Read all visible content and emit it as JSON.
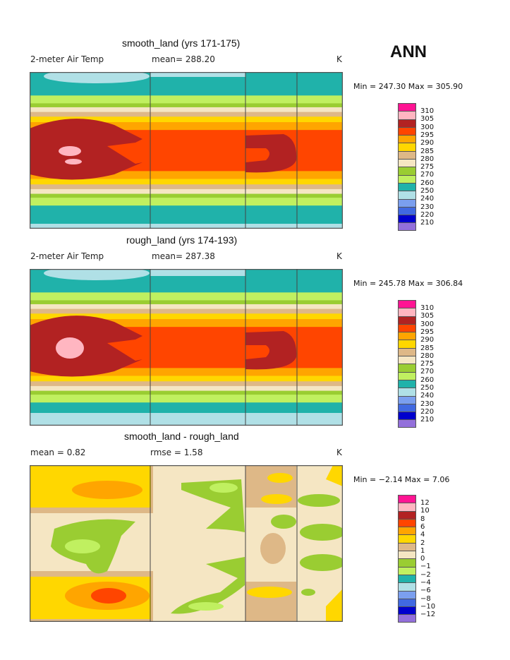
{
  "season": "ANN",
  "colors": [
    "#FF1493",
    "#FFB6C1",
    "#B22222",
    "#FF4500",
    "#FFA500",
    "#FFD700",
    "#DEB887",
    "#F5E6C3",
    "#9ACD32",
    "#C0F060",
    "#20B2AA",
    "#B0E0E6",
    "#7B9FEF",
    "#4169E1",
    "#0000CD",
    "#9370DB"
  ],
  "chart_data": [
    {
      "type": "heatmap",
      "title": "smooth_land (yrs 171-175)",
      "variable": "2-meter Air Temp",
      "mean_label": "mean= 288.20",
      "units": "K",
      "minmax": "Min = 247.30 Max = 305.90",
      "min": 247.3,
      "max": 305.9,
      "mean": 288.2,
      "levels": [
        "310",
        "305",
        "300",
        "295",
        "290",
        "285",
        "280",
        "275",
        "270",
        "260",
        "250",
        "240",
        "230",
        "220",
        "210"
      ]
    },
    {
      "type": "heatmap",
      "title": "rough_land (yrs 174-193)",
      "variable": "2-meter Air Temp",
      "mean_label": "mean= 287.38",
      "units": "K",
      "minmax": "Min = 245.78 Max = 306.84",
      "min": 245.78,
      "max": 306.84,
      "mean": 287.38,
      "levels": [
        "310",
        "305",
        "300",
        "295",
        "290",
        "285",
        "280",
        "275",
        "270",
        "260",
        "250",
        "240",
        "230",
        "220",
        "210"
      ]
    },
    {
      "type": "heatmap",
      "title": "smooth_land - rough_land",
      "variable": "mean =    0.82",
      "mean_label": "rmse =    1.58",
      "units": "K",
      "minmax": "Min =  −2.14 Max =    7.06",
      "min": -2.14,
      "max": 7.06,
      "mean": 0.82,
      "rmse": 1.58,
      "levels": [
        "12",
        "10",
        "8",
        "6",
        "4",
        "2",
        "1",
        "0",
        "−1",
        "−2",
        "−4",
        "−6",
        "−8",
        "−10",
        "−12"
      ]
    }
  ]
}
